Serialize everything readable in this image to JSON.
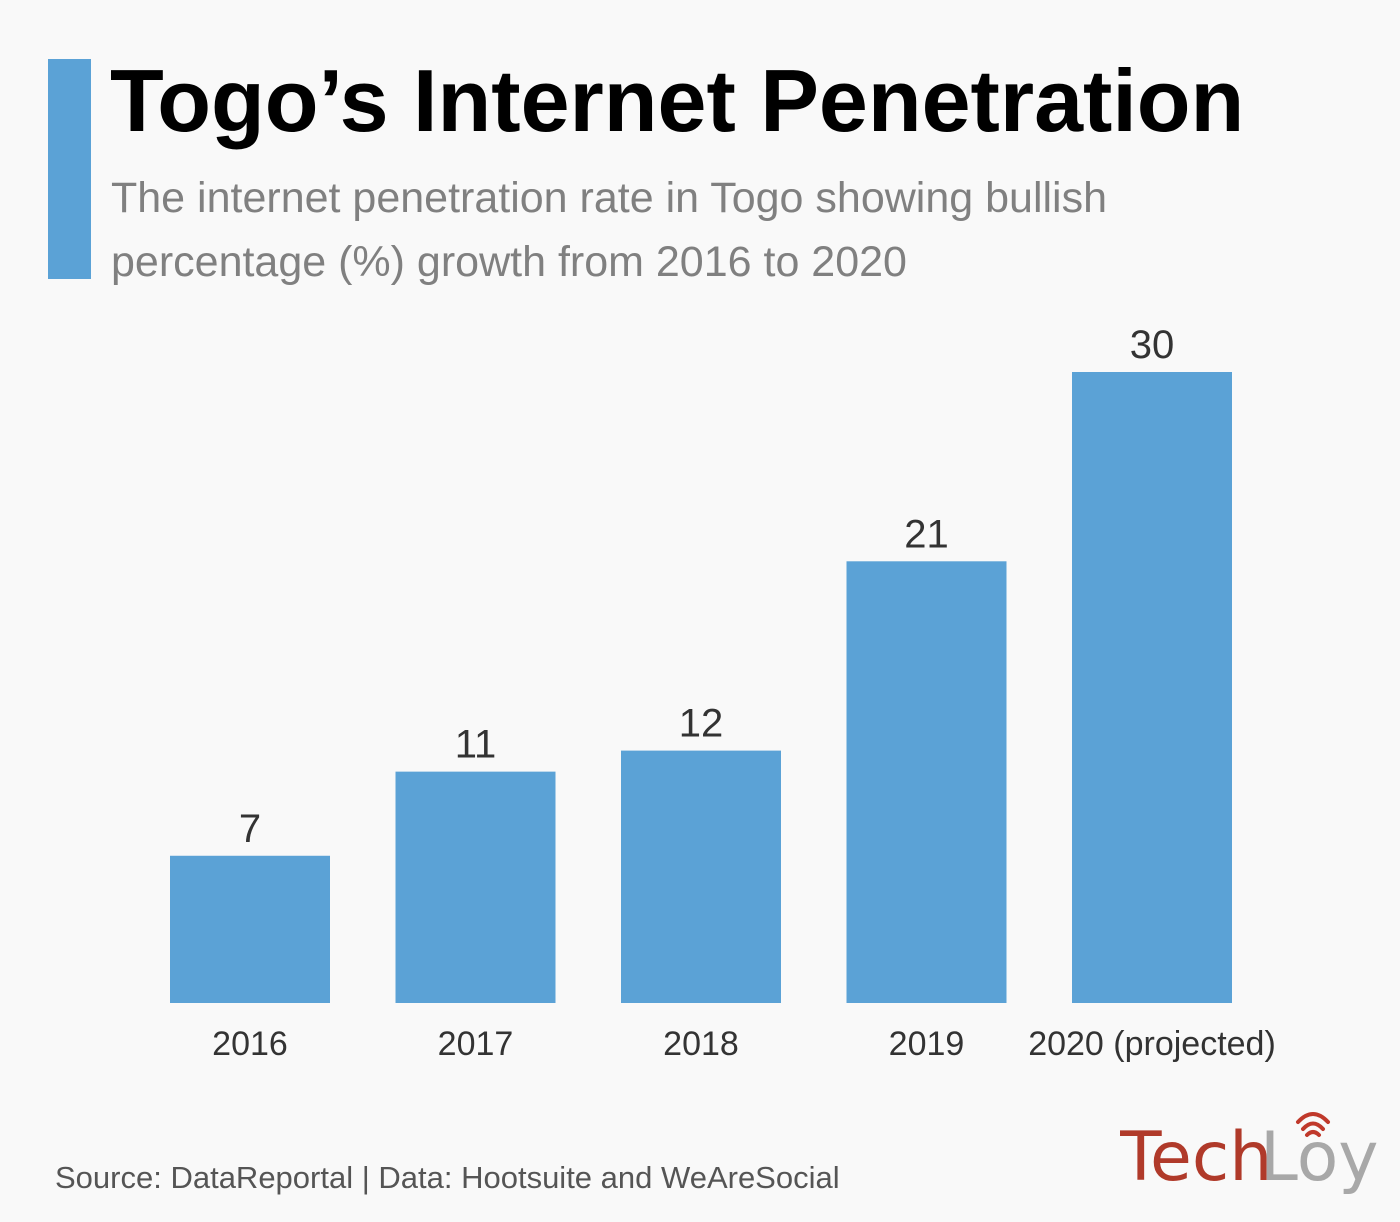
{
  "title": "Togo’s Internet Penetration",
  "subtitle": "The internet penetration rate in Togo showing bullish percentage (%) growth from 2016 to 2020",
  "source": "Source: DataReportal | Data: Hootsuite and WeAreSocial",
  "logo": {
    "text_a": "Tech",
    "text_b": "Loy",
    "color_a": "#b03a2a",
    "color_b": "#a8a8a8"
  },
  "colors": {
    "bar": "#5ba2d6",
    "accent": "#5ba2d6"
  },
  "chart_data": {
    "type": "bar",
    "categories": [
      "2016",
      "2017",
      "2018",
      "2019",
      "2020 (projected)"
    ],
    "values": [
      7,
      11,
      12,
      21,
      30
    ],
    "title": "Togo’s Internet Penetration",
    "xlabel": "",
    "ylabel": "",
    "ylim": [
      0,
      30
    ],
    "grid": false,
    "data_labels": true
  }
}
